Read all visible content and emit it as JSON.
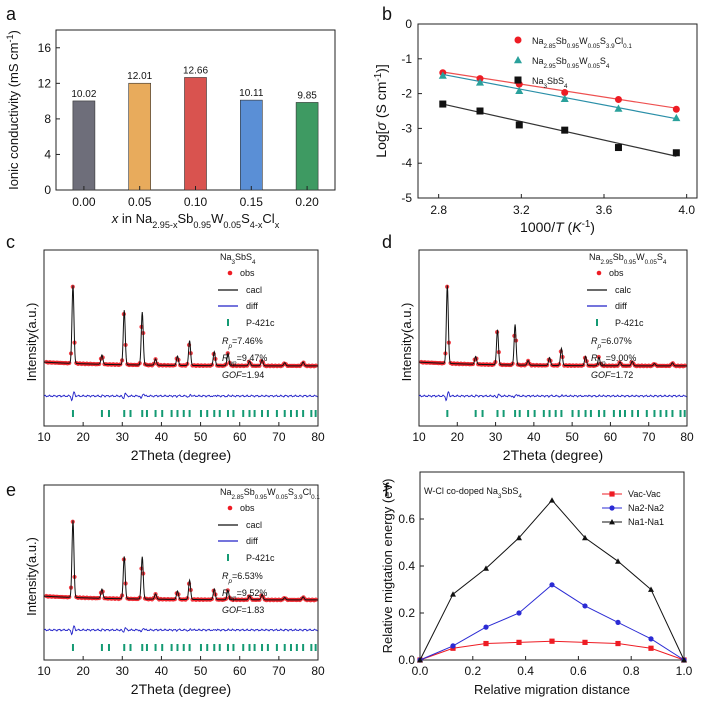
{
  "figure": {
    "title": ""
  },
  "chart_data": [
    {
      "panel": "a",
      "type": "bar",
      "categories": [
        "0.00",
        "0.05",
        "0.10",
        "0.15",
        "0.20"
      ],
      "values": [
        10.02,
        12.01,
        12.66,
        10.11,
        9.85
      ],
      "value_labels": [
        "10.02",
        "12.01",
        "12.66",
        "10.11",
        "9.85"
      ],
      "colors": [
        "#6e6e7a",
        "#e8ab5c",
        "#d9534f",
        "#5a8fd6",
        "#3e9a62"
      ],
      "ylabel": "Ionic conductivity (mS cm-1)",
      "ylabel_parts": {
        "main": "Ionic conductivity (mS cm",
        "sup": "-1",
        "end": ")"
      },
      "xlabel_parts": [
        {
          "t": "x",
          "style": "italic"
        },
        {
          "t": " in Na"
        },
        {
          "t": "2.95-x",
          "sub": true
        },
        {
          "t": "Sb"
        },
        {
          "t": "0.95",
          "sub": true
        },
        {
          "t": "W"
        },
        {
          "t": "0.05",
          "sub": true
        },
        {
          "t": "S"
        },
        {
          "t": "4-x",
          "sub": true
        },
        {
          "t": "Cl"
        },
        {
          "t": "x",
          "sub": true
        }
      ],
      "ylim": [
        0,
        18
      ],
      "yticks": [
        0,
        4,
        8,
        12,
        16
      ],
      "ytick_labels": [
        "0",
        "4",
        "8",
        "12",
        "16"
      ]
    },
    {
      "panel": "b",
      "type": "scatter",
      "xlabel_parts": [
        {
          "t": "1000/"
        },
        {
          "t": "T",
          "style": "italic"
        },
        {
          "t": " ("
        },
        {
          "t": "K",
          "style": "italic"
        },
        {
          "t": "-1",
          "sup": true
        },
        {
          "t": ")"
        }
      ],
      "ylabel_parts": [
        {
          "t": "Log["
        },
        {
          "t": "σ",
          "style": "italic"
        },
        {
          "t": " (S cm"
        },
        {
          "t": "-1",
          "sup": true
        },
        {
          "t": ")]"
        }
      ],
      "xlim": [
        2.7,
        4.05
      ],
      "ylim": [
        -5,
        0
      ],
      "xticks": [
        2.8,
        3.2,
        3.6,
        4.0
      ],
      "xtick_labels": [
        "2.8",
        "3.2",
        "3.6",
        "4.0"
      ],
      "yticks": [
        -5,
        -4,
        -3,
        -2,
        -1,
        0
      ],
      "ytick_labels": [
        "-5",
        "-4",
        "-3",
        "-2",
        "-1",
        "0"
      ],
      "series": [
        {
          "name": "Na2.85Sb0.95W0.05S3.9Cl0.1",
          "label_parts": [
            {
              "t": "Na"
            },
            {
              "t": "2.85",
              "sub": true
            },
            {
              "t": "Sb"
            },
            {
              "t": "0.95",
              "sub": true
            },
            {
              "t": "W"
            },
            {
              "t": "0.05",
              "sub": true
            },
            {
              "t": "S"
            },
            {
              "t": "3.9",
              "sub": true
            },
            {
              "t": "Cl"
            },
            {
              "t": "0.1",
              "sub": true
            }
          ],
          "marker": "circle",
          "color": "#ee1c24",
          "line_color": "#ee5050",
          "x": [
            2.82,
            3.0,
            3.19,
            3.41,
            3.67,
            3.95
          ],
          "y": [
            -1.4,
            -1.57,
            -1.73,
            -1.97,
            -2.17,
            -2.45
          ],
          "fit": [
            [
              2.82,
              -1.38
            ],
            [
              3.95,
              -2.42
            ]
          ]
        },
        {
          "name": "Na2.95Sb0.95W0.05S4",
          "label_parts": [
            {
              "t": "Na"
            },
            {
              "t": "2.95",
              "sub": true
            },
            {
              "t": "Sb"
            },
            {
              "t": "0.95",
              "sub": true
            },
            {
              "t": "W"
            },
            {
              "t": "0.05",
              "sub": true
            },
            {
              "t": "S"
            },
            {
              "t": "4",
              "sub": true
            }
          ],
          "marker": "triangle",
          "color": "#2aa19c",
          "line_color": "#2a8fa8",
          "x": [
            2.82,
            3.0,
            3.19,
            3.41,
            3.67,
            3.95
          ],
          "y": [
            -1.48,
            -1.68,
            -1.92,
            -2.15,
            -2.43,
            -2.7
          ],
          "fit": [
            [
              2.82,
              -1.45
            ],
            [
              3.95,
              -2.72
            ]
          ]
        },
        {
          "name": "Na3SbS4",
          "label_parts": [
            {
              "t": "Na"
            },
            {
              "t": "3",
              "sub": true
            },
            {
              "t": "SbS"
            },
            {
              "t": "4",
              "sub": true
            }
          ],
          "marker": "square",
          "color": "#111111",
          "line_color": "#333333",
          "x": [
            2.82,
            3.0,
            3.19,
            3.41,
            3.67,
            3.95
          ],
          "y": [
            -2.3,
            -2.5,
            -2.9,
            -3.05,
            -3.55,
            -3.7
          ],
          "fit": [
            [
              2.82,
              -2.3
            ],
            [
              3.95,
              -3.8
            ]
          ]
        }
      ]
    },
    {
      "panel": "c",
      "type": "line",
      "title_parts": [
        {
          "t": "Na"
        },
        {
          "t": "3",
          "sub": true
        },
        {
          "t": "SbS"
        },
        {
          "t": "4",
          "sub": true
        }
      ],
      "legend": {
        "obs": "obs",
        "calc": "cacl",
        "diff": "diff",
        "ticks": "P-421c"
      },
      "stats": [
        {
          "parts": [
            {
              "t": "R",
              "style": "italic"
            },
            {
              "t": "p",
              "sub": true,
              "style": "italic"
            },
            {
              "t": "=7.46%"
            }
          ]
        },
        {
          "parts": [
            {
              "t": "R",
              "style": "italic"
            },
            {
              "t": "wp",
              "sub": true,
              "style": "italic"
            },
            {
              "t": "=9.47%"
            }
          ]
        },
        {
          "parts": [
            {
              "t": "GOF",
              "style": "italic"
            },
            {
              "t": "=1.94"
            }
          ]
        }
      ],
      "xlabel": "2Theta (degree)",
      "ylabel": "Intensity(a.u.)",
      "xlim": [
        10,
        80
      ],
      "xticks": [
        10,
        20,
        30,
        40,
        50,
        60,
        70,
        80
      ],
      "xtick_labels": [
        "10",
        "20",
        "30",
        "40",
        "50",
        "60",
        "70",
        "80"
      ],
      "peaks": [
        [
          17.4,
          1.0
        ],
        [
          24.8,
          0.12
        ],
        [
          30.5,
          0.7
        ],
        [
          35.1,
          0.68
        ],
        [
          38.5,
          0.08
        ],
        [
          44.1,
          0.12
        ],
        [
          47.2,
          0.32
        ],
        [
          53.5,
          0.18
        ],
        [
          57.0,
          0.16
        ],
        [
          62.5,
          0.06
        ],
        [
          65.7,
          0.08
        ],
        [
          71.5,
          0.04
        ],
        [
          76.2,
          0.05
        ]
      ],
      "bragg": [
        17.4,
        24.8,
        26.6,
        30.5,
        32.1,
        35.1,
        36.3,
        38.5,
        40.2,
        42.6,
        44.1,
        45.7,
        47.2,
        50.1,
        51.7,
        53.5,
        54.9,
        57.0,
        58.4,
        60.9,
        62.5,
        63.8,
        65.7,
        67.2,
        69.5,
        71.5,
        73.1,
        74.6,
        76.2,
        78.3,
        79.4
      ]
    },
    {
      "panel": "d",
      "type": "line",
      "title_parts": [
        {
          "t": "Na"
        },
        {
          "t": "2.95",
          "sub": true
        },
        {
          "t": "Sb"
        },
        {
          "t": "0.95",
          "sub": true
        },
        {
          "t": "W"
        },
        {
          "t": "0.05",
          "sub": true
        },
        {
          "t": "S"
        },
        {
          "t": "4",
          "sub": true
        }
      ],
      "legend": {
        "obs": "obs",
        "calc": "calc",
        "diff": "diff",
        "ticks": "P-421c"
      },
      "stats": [
        {
          "parts": [
            {
              "t": "R",
              "style": "italic"
            },
            {
              "t": "p",
              "sub": true,
              "style": "italic"
            },
            {
              "t": "=6.07%"
            }
          ]
        },
        {
          "parts": [
            {
              "t": "R",
              "style": "italic"
            },
            {
              "t": "wp",
              "sub": true,
              "style": "italic"
            },
            {
              "t": "=9.00%"
            }
          ]
        },
        {
          "parts": [
            {
              "t": "GOF",
              "style": "italic"
            },
            {
              "t": "=1.72"
            }
          ]
        }
      ],
      "xlabel": "2Theta (degree)",
      "ylabel": "Intensity(a.u.)",
      "xlim": [
        10,
        80
      ],
      "xticks": [
        10,
        20,
        30,
        40,
        50,
        60,
        70,
        80
      ],
      "xtick_labels": [
        "10",
        "20",
        "30",
        "40",
        "50",
        "60",
        "70",
        "80"
      ],
      "peaks": [
        [
          17.4,
          1.0
        ],
        [
          24.8,
          0.1
        ],
        [
          30.5,
          0.45
        ],
        [
          35.1,
          0.52
        ],
        [
          38.5,
          0.06
        ],
        [
          44.1,
          0.1
        ],
        [
          47.2,
          0.22
        ],
        [
          53.5,
          0.12
        ],
        [
          57.0,
          0.11
        ],
        [
          62.5,
          0.05
        ],
        [
          65.7,
          0.06
        ],
        [
          71.5,
          0.03
        ],
        [
          76.2,
          0.04
        ]
      ],
      "bragg": [
        17.4,
        24.8,
        26.6,
        30.5,
        32.1,
        35.1,
        36.3,
        38.5,
        40.2,
        42.6,
        44.1,
        45.7,
        47.2,
        50.1,
        51.7,
        53.5,
        54.9,
        57.0,
        58.4,
        60.9,
        62.5,
        63.8,
        65.7,
        67.2,
        69.5,
        71.5,
        73.1,
        74.6,
        76.2,
        78.3,
        79.4
      ]
    },
    {
      "panel": "e",
      "type": "line",
      "title_parts": [
        {
          "t": "Na"
        },
        {
          "t": "2.85",
          "sub": true
        },
        {
          "t": "Sb"
        },
        {
          "t": "0.95",
          "sub": true
        },
        {
          "t": "W"
        },
        {
          "t": "0.05",
          "sub": true
        },
        {
          "t": "S"
        },
        {
          "t": "3.9",
          "sub": true
        },
        {
          "t": "Cl"
        },
        {
          "t": "0.1",
          "sub": true
        }
      ],
      "legend": {
        "obs": "obs",
        "calc": "cacl",
        "diff": "diff",
        "ticks": "P-421c"
      },
      "stats": [
        {
          "parts": [
            {
              "t": "R",
              "style": "italic"
            },
            {
              "t": "p",
              "sub": true,
              "style": "italic"
            },
            {
              "t": "=6.53%"
            }
          ]
        },
        {
          "parts": [
            {
              "t": "R",
              "style": "italic"
            },
            {
              "t": "wp",
              "sub": true,
              "style": "italic"
            },
            {
              "t": "=9.52%"
            }
          ]
        },
        {
          "parts": [
            {
              "t": "GOF",
              "style": "italic"
            },
            {
              "t": "=1.83"
            }
          ]
        }
      ],
      "xlabel": "2Theta (degree)",
      "ylabel": "Intensity(a.u.)",
      "xlim": [
        10,
        80
      ],
      "xticks": [
        10,
        20,
        30,
        40,
        50,
        60,
        70,
        80
      ],
      "xtick_labels": [
        "10",
        "20",
        "30",
        "40",
        "50",
        "60",
        "70",
        "80"
      ],
      "peaks": [
        [
          17.4,
          1.0
        ],
        [
          24.8,
          0.12
        ],
        [
          30.5,
          0.55
        ],
        [
          35.1,
          0.55
        ],
        [
          38.5,
          0.07
        ],
        [
          44.1,
          0.11
        ],
        [
          47.2,
          0.25
        ],
        [
          53.5,
          0.14
        ],
        [
          57.0,
          0.12
        ],
        [
          62.5,
          0.05
        ],
        [
          65.7,
          0.07
        ],
        [
          71.5,
          0.03
        ],
        [
          76.2,
          0.04
        ]
      ],
      "bragg": [
        17.4,
        24.8,
        26.6,
        30.5,
        32.1,
        35.1,
        36.3,
        38.5,
        40.2,
        42.6,
        44.1,
        45.7,
        47.2,
        50.1,
        51.7,
        53.5,
        54.9,
        57.0,
        58.4,
        60.9,
        62.5,
        63.8,
        65.7,
        67.2,
        69.5,
        71.5,
        73.1,
        74.6,
        76.2,
        78.3,
        79.4
      ]
    },
    {
      "panel": "f",
      "type": "line",
      "annotation_parts": [
        {
          "t": "W-Cl co-doped Na"
        },
        {
          "t": "3",
          "sub": true
        },
        {
          "t": "SbS"
        },
        {
          "t": "4",
          "sub": true
        }
      ],
      "xlabel": "Relative migration distance",
      "ylabel": "Relative migtation energy (eV)",
      "xlim": [
        0,
        1
      ],
      "ylim": [
        0,
        0.8
      ],
      "xticks": [
        0,
        0.2,
        0.4,
        0.6,
        0.8,
        1.0
      ],
      "xtick_labels": [
        "0.0",
        "0.2",
        "0.4",
        "0.6",
        "0.8",
        "1.0"
      ],
      "yticks": [
        0,
        0.2,
        0.4,
        0.6
      ],
      "ytick_labels": [
        "0.0",
        "0.2",
        "0.4",
        "0.6"
      ],
      "series": [
        {
          "name": "Vac-Vac",
          "marker": "square",
          "color": "#ee1c24",
          "x": [
            0,
            0.125,
            0.25,
            0.375,
            0.5,
            0.625,
            0.75,
            0.875,
            1.0
          ],
          "y": [
            0.0,
            0.05,
            0.07,
            0.075,
            0.08,
            0.075,
            0.07,
            0.05,
            0.0
          ]
        },
        {
          "name": "Na2-Na2",
          "marker": "circle",
          "color": "#2b2bd4",
          "x": [
            0,
            0.125,
            0.25,
            0.375,
            0.5,
            0.625,
            0.75,
            0.875,
            1.0
          ],
          "y": [
            0.0,
            0.06,
            0.14,
            0.2,
            0.32,
            0.23,
            0.16,
            0.09,
            0.0
          ]
        },
        {
          "name": "Na1-Na1",
          "marker": "triangle",
          "color": "#111111",
          "x": [
            0,
            0.125,
            0.25,
            0.375,
            0.5,
            0.625,
            0.75,
            0.875,
            1.0
          ],
          "y": [
            0.0,
            0.28,
            0.39,
            0.52,
            0.68,
            0.52,
            0.42,
            0.3,
            0.0
          ]
        }
      ]
    }
  ]
}
